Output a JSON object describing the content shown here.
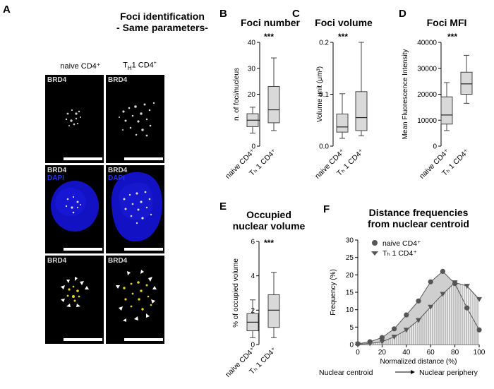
{
  "panel_A": {
    "letter": "A",
    "title_line1": "Foci identification",
    "title_line2": "- Same parameters-",
    "col_left": "naive CD4⁺",
    "col_right": "TH 1 CD4⁺",
    "col_right_main": "T",
    "col_right_sub": "H",
    "col_right_rest": "1 CD4",
    "col_right_sup": "+",
    "row1_label": "BRD4",
    "row2_label1": "BRD4",
    "row2_label2": "DAPI",
    "row3_label": "BRD4",
    "colors": {
      "dapi": "#1010c8",
      "foci_overlay": "#e6d21a",
      "background": "#000000"
    }
  },
  "chart_data": [
    {
      "letter": "B",
      "type": "box",
      "title": "Foci number",
      "ylabel": "n. of foci/nucleus",
      "significance": "***",
      "ylim": [
        0,
        40
      ],
      "yticks": [
        0,
        10,
        20,
        30,
        40
      ],
      "categories": [
        "naive CD4⁺",
        "Tₕ 1 CD4⁺"
      ],
      "boxes": [
        {
          "min": 5,
          "q1": 7.5,
          "median": 10,
          "q3": 12.5,
          "max": 15
        },
        {
          "min": 6,
          "q1": 9,
          "median": 14,
          "q3": 23,
          "max": 34
        }
      ]
    },
    {
      "letter": "C",
      "type": "box",
      "title": "Foci volume",
      "ylabel": "Volume unit (μm³)",
      "significance": "***",
      "ylim": [
        0,
        0.2
      ],
      "yticks": [
        0.0,
        0.1,
        0.2
      ],
      "categories": [
        "naive CD4⁺",
        "Tₕ 1 CD4⁺"
      ],
      "boxes": [
        {
          "min": 0.015,
          "q1": 0.027,
          "median": 0.037,
          "q3": 0.062,
          "max": 0.101
        },
        {
          "min": 0.02,
          "q1": 0.03,
          "median": 0.055,
          "q3": 0.105,
          "max": 0.2
        }
      ]
    },
    {
      "letter": "D",
      "type": "box",
      "title": "Foci MFI",
      "ylabel": "Mean Fluorescence Intensity",
      "significance": "***",
      "ylim": [
        0,
        40000
      ],
      "yticks": [
        0,
        10000,
        20000,
        30000,
        40000
      ],
      "categories": [
        "naive CD4⁺",
        "Tₕ 1 CD4⁺"
      ],
      "boxes": [
        {
          "min": 6000,
          "q1": 8500,
          "median": 12000,
          "q3": 19000,
          "max": 24500
        },
        {
          "min": 16500,
          "q1": 20000,
          "median": 24000,
          "q3": 28500,
          "max": 35000
        }
      ]
    },
    {
      "letter": "E",
      "type": "box",
      "title": "Occupied nuclear volume",
      "title_line1": "Occupied",
      "title_line2": "nuclear volume",
      "ylabel": "% of occupied volume",
      "significance": "***",
      "ylim": [
        0,
        6
      ],
      "yticks": [
        0,
        2,
        4,
        6
      ],
      "categories": [
        "naive CD4⁺",
        "Tₕ 1 CD4⁺"
      ],
      "boxes": [
        {
          "min": 0.4,
          "q1": 0.8,
          "median": 1.3,
          "q3": 1.8,
          "max": 2.6
        },
        {
          "min": 0.4,
          "q1": 1.0,
          "median": 2.0,
          "q3": 2.9,
          "max": 4.2
        }
      ]
    },
    {
      "letter": "F",
      "type": "area",
      "title": "Distance frequencies from nuclear centroid",
      "title_line1": "Distance frequencies",
      "title_line2": "from nuclear centroid",
      "xlabel": "Normalized distance (%)",
      "ylabel": "Frequency (%)",
      "xlim": [
        0,
        100
      ],
      "ylim": [
        0,
        30
      ],
      "xticks": [
        0,
        20,
        40,
        60,
        80,
        100
      ],
      "yticks": [
        0,
        5,
        10,
        15,
        20,
        25,
        30
      ],
      "axis_note_left": "Nuclear centroid",
      "axis_note_right": "Nuclear periphery",
      "series": [
        {
          "name": "naive CD4⁺",
          "marker": "circle",
          "color": "#555555",
          "x": [
            0,
            10,
            20,
            30,
            40,
            50,
            60,
            70,
            80,
            90,
            100
          ],
          "y": [
            0.2,
            0.8,
            2.0,
            4.5,
            8.5,
            12.5,
            18.0,
            21.0,
            17.5,
            10.5,
            4.2
          ]
        },
        {
          "name": "Tₕ 1 CD4⁺",
          "marker": "triangle-down",
          "color": "#555555",
          "x": [
            0,
            10,
            20,
            30,
            40,
            50,
            60,
            70,
            80,
            90,
            100
          ],
          "y": [
            0.1,
            0.3,
            0.8,
            2.2,
            4.2,
            7.0,
            10.8,
            14.5,
            17.8,
            16.8,
            13.0
          ]
        }
      ]
    }
  ]
}
